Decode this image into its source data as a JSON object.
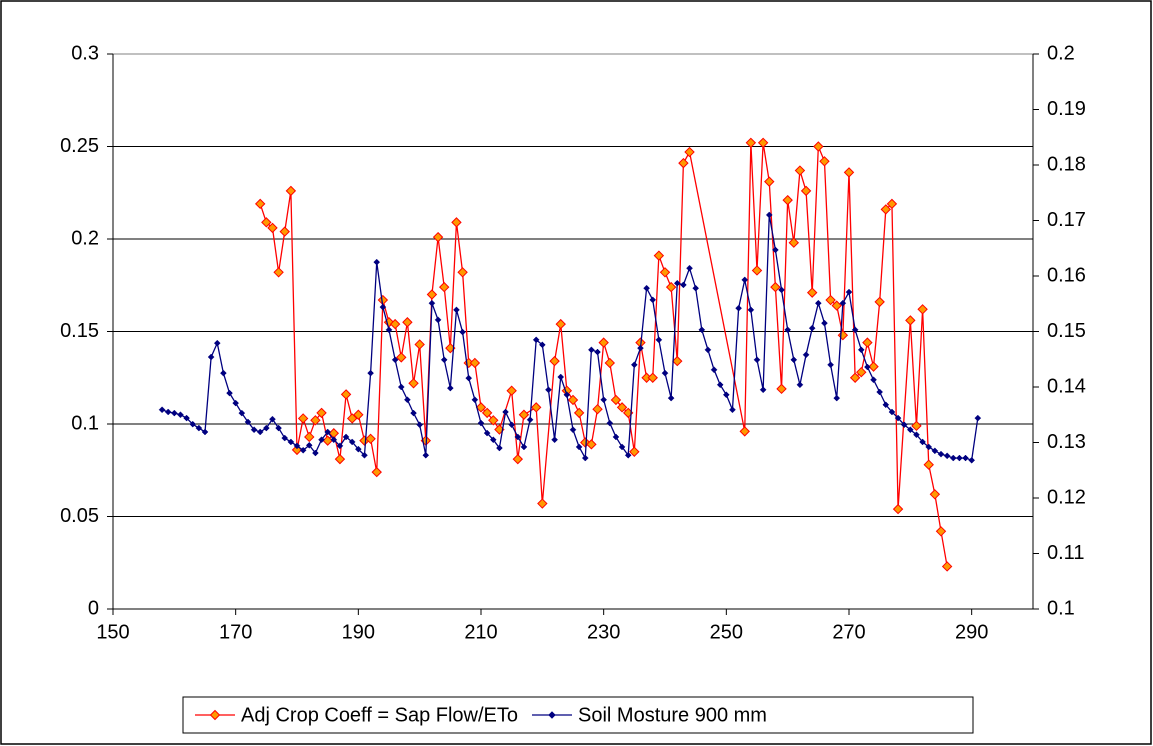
{
  "chart_data": {
    "type": "line",
    "xlim": [
      150,
      300
    ],
    "xticks": [
      150,
      170,
      190,
      210,
      230,
      250,
      270,
      290
    ],
    "ylim": [
      0,
      0.3
    ],
    "yticks": [
      0,
      0.05,
      0.1,
      0.15,
      0.2,
      0.25,
      0.3
    ],
    "y2lim": [
      0.1,
      0.2
    ],
    "y2ticks": [
      0.1,
      0.11,
      0.12,
      0.13,
      0.14,
      0.15,
      0.16,
      0.17,
      0.18,
      0.19,
      0.2
    ],
    "grid": true,
    "legend": "bottom",
    "series": [
      {
        "name": "Adj Crop Coeff = Sap Flow/ETo",
        "color": "#ff0000",
        "marker_color": "#ff9900",
        "x": [
          174,
          175,
          176,
          177,
          178,
          179,
          180,
          181,
          182,
          183,
          184,
          185,
          186,
          187,
          188,
          189,
          190,
          191,
          192,
          193,
          194,
          195,
          196,
          197,
          198,
          199,
          200,
          201,
          202,
          203,
          204,
          205,
          206,
          207,
          208,
          209,
          210,
          211,
          212,
          213,
          215,
          216,
          217,
          219,
          220,
          222,
          223,
          224,
          225,
          226,
          227,
          228,
          229,
          230,
          231,
          232,
          233,
          234,
          235,
          236,
          237,
          238,
          239,
          240,
          241,
          242,
          243,
          244,
          253,
          254,
          255,
          256,
          257,
          258,
          259,
          260,
          261,
          262,
          263,
          264,
          265,
          266,
          267,
          268,
          269,
          270,
          271,
          272,
          273,
          274,
          275,
          276,
          277,
          278,
          280,
          281,
          282,
          283,
          284,
          285,
          286
        ],
        "values": [
          0.219,
          0.209,
          0.206,
          0.182,
          0.204,
          0.226,
          0.086,
          0.103,
          0.093,
          0.102,
          0.106,
          0.091,
          0.095,
          0.081,
          0.116,
          0.103,
          0.105,
          0.091,
          0.092,
          0.074,
          0.167,
          0.155,
          0.154,
          0.136,
          0.155,
          0.122,
          0.143,
          0.091,
          0.17,
          0.201,
          0.174,
          0.141,
          0.209,
          0.182,
          0.133,
          0.133,
          0.109,
          0.106,
          0.102,
          0.097,
          0.118,
          0.081,
          0.105,
          0.109,
          0.057,
          0.134,
          0.154,
          0.118,
          0.113,
          0.106,
          0.09,
          0.089,
          0.108,
          0.144,
          0.133,
          0.113,
          0.109,
          0.106,
          0.085,
          0.144,
          0.125,
          0.125,
          0.191,
          0.182,
          0.174,
          0.134,
          0.241,
          0.247,
          0.096,
          0.252,
          0.183,
          0.252,
          0.231,
          0.174,
          0.119,
          0.221,
          0.198,
          0.237,
          0.226,
          0.171,
          0.25,
          0.242,
          0.167,
          0.164,
          0.148,
          0.236,
          0.125,
          0.128,
          0.144,
          0.131,
          0.166,
          0.216,
          0.219,
          0.054,
          0.156,
          0.099,
          0.162,
          0.078,
          0.062,
          0.042,
          0.023
        ]
      },
      {
        "name": "Soil Mosture 900 mm",
        "color": "#000080",
        "marker_color": "#000080",
        "axis": "y2",
        "x": [
          158,
          159,
          160,
          161,
          162,
          163,
          164,
          165,
          166,
          167,
          168,
          169,
          170,
          171,
          172,
          173,
          174,
          175,
          176,
          177,
          178,
          179,
          180,
          181,
          182,
          183,
          184,
          185,
          186,
          187,
          188,
          189,
          190,
          191,
          192,
          193,
          194,
          195,
          196,
          197,
          198,
          199,
          200,
          201,
          202,
          203,
          204,
          205,
          206,
          207,
          208,
          209,
          210,
          211,
          212,
          213,
          214,
          215,
          216,
          217,
          218,
          219,
          220,
          221,
          222,
          223,
          224,
          225,
          226,
          227,
          228,
          229,
          230,
          231,
          232,
          233,
          234,
          235,
          236,
          237,
          238,
          239,
          240,
          241,
          242,
          243,
          244,
          245,
          246,
          247,
          248,
          249,
          250,
          251,
          252,
          253,
          254,
          255,
          256,
          257,
          258,
          259,
          260,
          261,
          262,
          263,
          264,
          265,
          266,
          267,
          268,
          269,
          270,
          271,
          272,
          273,
          274,
          275,
          276,
          277,
          278,
          279,
          280,
          281,
          282,
          283,
          284,
          285,
          286,
          287,
          288,
          289,
          290,
          291
        ],
        "values": [
          0.1359,
          0.1355,
          0.1353,
          0.135,
          0.1344,
          0.1333,
          0.1326,
          0.1319,
          0.1454,
          0.1479,
          0.1425,
          0.1389,
          0.1371,
          0.1353,
          0.1337,
          0.1323,
          0.1319,
          0.1326,
          0.1342,
          0.1326,
          0.1308,
          0.1301,
          0.1294,
          0.1286,
          0.1295,
          0.1281,
          0.1305,
          0.1319,
          0.1305,
          0.1294,
          0.131,
          0.1301,
          0.1288,
          0.1277,
          0.1425,
          0.1625,
          0.1544,
          0.1503,
          0.1449,
          0.14,
          0.1377,
          0.1353,
          0.1332,
          0.1277,
          0.1551,
          0.1521,
          0.1449,
          0.1398,
          0.1539,
          0.1499,
          0.1416,
          0.1377,
          0.1335,
          0.1317,
          0.1305,
          0.129,
          0.1355,
          0.1332,
          0.131,
          0.1292,
          0.1341,
          0.1485,
          0.1476,
          0.1395,
          0.1305,
          0.1418,
          0.1386,
          0.1323,
          0.1292,
          0.1272,
          0.1467,
          0.1463,
          0.1377,
          0.1335,
          0.131,
          0.1292,
          0.1277,
          0.144,
          0.147,
          0.1578,
          0.1557,
          0.1485,
          0.1425,
          0.138,
          0.1587,
          0.1584,
          0.1614,
          0.1578,
          0.1503,
          0.1467,
          0.1431,
          0.1404,
          0.1386,
          0.1359,
          0.1542,
          0.1593,
          0.1539,
          0.1449,
          0.1395,
          0.171,
          0.1647,
          0.1575,
          0.1503,
          0.1449,
          0.1404,
          0.1458,
          0.1506,
          0.1551,
          0.1515,
          0.144,
          0.138,
          0.1551,
          0.1571,
          0.1503,
          0.1467,
          0.1436,
          0.1413,
          0.1391,
          0.1368,
          0.1355,
          0.1344,
          0.1332,
          0.1323,
          0.1314,
          0.1301,
          0.1292,
          0.1285,
          0.1279,
          0.1276,
          0.1272,
          0.1272,
          0.1272,
          0.1268,
          0.1344
        ]
      }
    ]
  }
}
